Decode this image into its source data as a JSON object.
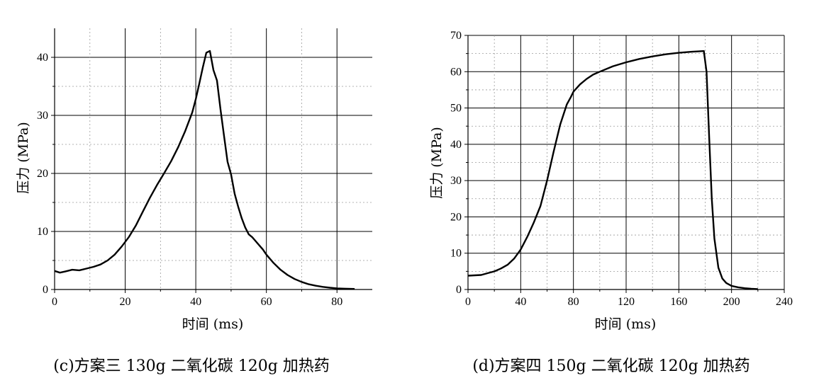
{
  "chart_data": [
    {
      "type": "line",
      "caption": "(c)方案三 130g 二氧化碳  120g 加热药",
      "xlabel": "时间 (ms)",
      "ylabel": "压力 (MPa)",
      "xlim": [
        0,
        90
      ],
      "ylim": [
        0,
        45
      ],
      "xticks": [
        0,
        20,
        40,
        60,
        80
      ],
      "yticks": [
        0,
        10,
        20,
        30,
        40
      ],
      "grid": true,
      "series": [
        {
          "x": [
            0,
            1.5,
            3,
            5,
            7,
            9,
            11,
            13,
            15,
            17,
            19,
            21,
            23,
            25,
            27,
            29,
            31,
            33,
            35,
            37,
            39,
            40,
            41,
            42,
            43,
            44,
            45,
            46,
            47,
            48,
            49,
            50,
            51,
            52,
            53,
            54,
            55,
            56,
            57,
            58,
            59,
            60,
            62,
            64,
            66,
            68,
            70,
            72,
            74,
            76,
            78,
            80,
            82,
            85
          ],
          "y": [
            3.2,
            2.9,
            3.1,
            3.4,
            3.3,
            3.6,
            3.9,
            4.3,
            5.0,
            6.0,
            7.4,
            9.0,
            11.0,
            13.4,
            15.8,
            18.0,
            20.0,
            22.1,
            24.5,
            27.3,
            30.5,
            32.8,
            35.5,
            38.3,
            40.8,
            41.1,
            37.8,
            36.0,
            31.0,
            26.5,
            22.0,
            19.8,
            16.5,
            14.3,
            12.3,
            10.7,
            9.5,
            9.0,
            8.3,
            7.6,
            6.9,
            6.0,
            4.6,
            3.4,
            2.5,
            1.8,
            1.3,
            0.9,
            0.65,
            0.45,
            0.3,
            0.2,
            0.15,
            0.1
          ]
        }
      ]
    },
    {
      "type": "line",
      "caption": "(d)方案四 150g 二氧化碳  120g 加热药",
      "xlabel": "时间 (ms)",
      "ylabel": "压力 (MPa)",
      "xlim": [
        0,
        240
      ],
      "ylim": [
        0,
        70
      ],
      "xticks": [
        0,
        40,
        80,
        120,
        160,
        200,
        240
      ],
      "yticks": [
        0,
        10,
        20,
        30,
        40,
        50,
        60,
        70
      ],
      "grid": true,
      "series": [
        {
          "x": [
            0,
            5,
            10,
            15,
            20,
            25,
            30,
            35,
            40,
            45,
            50,
            55,
            60,
            65,
            70,
            75,
            78,
            80,
            85,
            90,
            95,
            100,
            110,
            120,
            130,
            140,
            150,
            160,
            170,
            175,
            179,
            181,
            183,
            185,
            187,
            190,
            193,
            196,
            200,
            205,
            210,
            215,
            220
          ],
          "y": [
            3.8,
            3.9,
            4.0,
            4.5,
            5.0,
            5.8,
            6.8,
            8.5,
            11.0,
            14.5,
            18.5,
            23.0,
            30.0,
            38.0,
            45.5,
            51.0,
            53.0,
            54.5,
            56.5,
            58.0,
            59.2,
            60.0,
            61.5,
            62.6,
            63.5,
            64.2,
            64.8,
            65.2,
            65.5,
            65.6,
            65.7,
            60.0,
            42.0,
            25.0,
            14.0,
            6.0,
            3.0,
            1.8,
            1.0,
            0.6,
            0.35,
            0.2,
            0.1
          ]
        }
      ]
    }
  ]
}
